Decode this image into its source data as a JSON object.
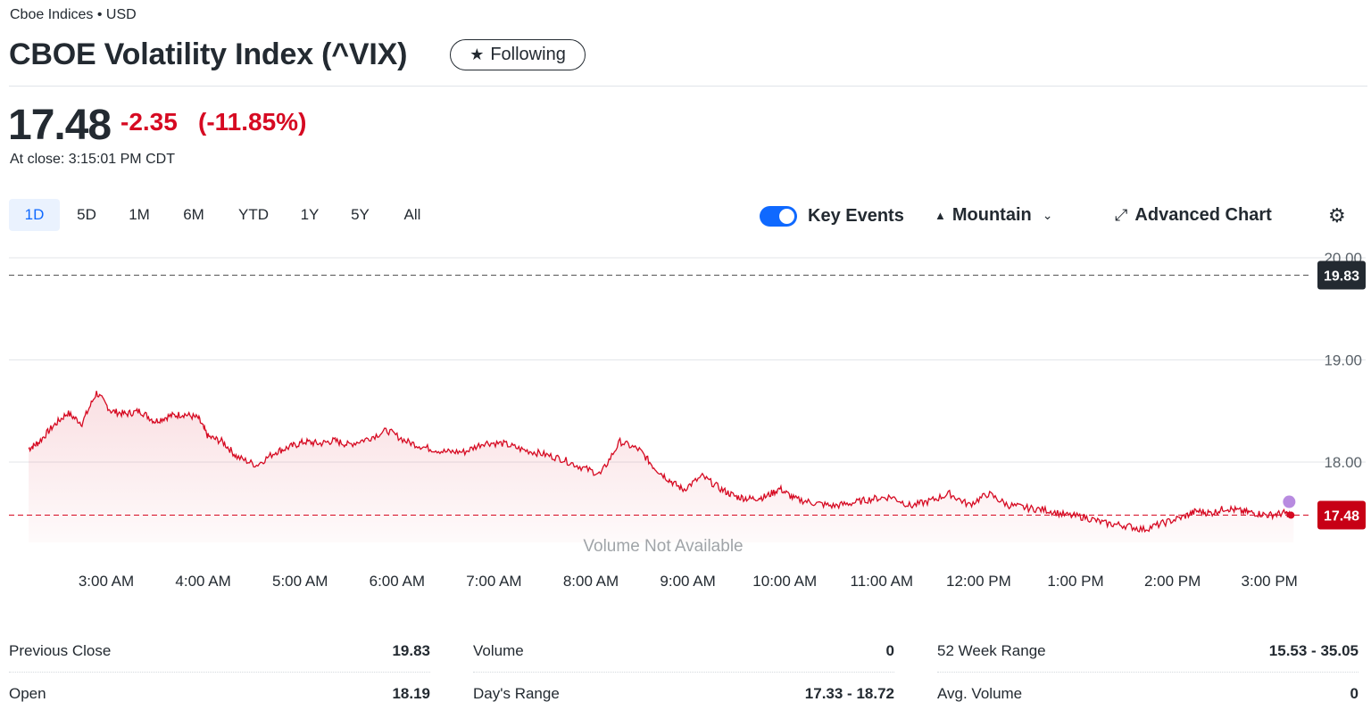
{
  "header": {
    "exchange": "Cboe Indices • USD",
    "title": "CBOE Volatility Index (^VIX)",
    "follow_label": "Following"
  },
  "quote": {
    "price": "17.48",
    "change": "-2.35",
    "change_pct": "(-11.85%)",
    "close_time": "At close: 3:15:01 PM CDT",
    "change_color": "#d60a22"
  },
  "chart_controls": {
    "ranges": [
      "1D",
      "5D",
      "1M",
      "6M",
      "YTD",
      "1Y",
      "5Y",
      "All"
    ],
    "active_range": "1D",
    "key_events_label": "Key Events",
    "key_events_on": true,
    "chart_type_label": "Mountain",
    "advanced_label": "Advanced Chart",
    "icons": {
      "chart_type": "mountain-icon",
      "advanced": "expand-icon",
      "settings": "gear-icon",
      "follow": "star-icon",
      "dropdown": "chevron-down-icon"
    }
  },
  "chart_data": {
    "type": "area",
    "x_tick_labels": [
      "3:00 AM",
      "4:00 AM",
      "5:00 AM",
      "6:00 AM",
      "7:00 AM",
      "8:00 AM",
      "9:00 AM",
      "10:00 AM",
      "11:00 AM",
      "12:00 PM",
      "1:00 PM",
      "2:00 PM",
      "3:00 PM"
    ],
    "y_tick_labels": [
      "20.00",
      "19.00",
      "18.00"
    ],
    "y_ticks": [
      20,
      19,
      18
    ],
    "ylim": [
      17.33,
      20.0
    ],
    "x_hours": [
      2.2,
      2.3,
      2.45,
      2.6,
      2.75,
      2.9,
      3.05,
      3.2,
      3.35,
      3.5,
      3.65,
      3.8,
      3.95,
      4.05,
      4.2,
      4.35,
      4.55,
      4.75,
      4.9,
      5.05,
      5.2,
      5.35,
      5.5,
      5.7,
      5.9,
      6.1,
      6.3,
      6.5,
      6.7,
      6.9,
      7.1,
      7.3,
      7.5,
      7.7,
      7.9,
      8.1,
      8.3,
      8.5,
      8.65,
      8.8,
      8.95,
      9.15,
      9.35,
      9.5,
      9.65,
      9.8,
      9.95,
      10.1,
      10.3,
      10.5,
      10.7,
      10.9,
      11.1,
      11.3,
      11.5,
      11.7,
      11.9,
      12.1,
      12.3,
      12.5,
      12.7,
      12.9,
      13.1,
      13.3,
      13.5,
      13.7,
      13.9,
      14.1,
      14.25,
      14.4,
      14.55,
      14.7,
      14.85,
      15.0,
      15.15,
      15.25
    ],
    "values": [
      18.13,
      18.19,
      18.35,
      18.48,
      18.38,
      18.68,
      18.5,
      18.47,
      18.5,
      18.4,
      18.45,
      18.47,
      18.43,
      18.25,
      18.2,
      18.05,
      17.97,
      18.1,
      18.15,
      18.2,
      18.18,
      18.21,
      18.17,
      18.23,
      18.31,
      18.2,
      18.14,
      18.1,
      18.1,
      18.19,
      18.18,
      18.12,
      18.08,
      18.03,
      17.95,
      17.88,
      18.2,
      18.12,
      17.95,
      17.83,
      17.73,
      17.86,
      17.73,
      17.66,
      17.64,
      17.66,
      17.74,
      17.64,
      17.6,
      17.57,
      17.6,
      17.64,
      17.66,
      17.57,
      17.62,
      17.69,
      17.58,
      17.69,
      17.58,
      17.55,
      17.53,
      17.48,
      17.46,
      17.4,
      17.38,
      17.34,
      17.4,
      17.46,
      17.52,
      17.5,
      17.55,
      17.52,
      17.5,
      17.48,
      17.5,
      17.48
    ],
    "previous_close": 19.83,
    "previous_close_label": "19.83",
    "last_value": 17.48,
    "last_label": "17.48",
    "volume_note": "Volume Not Available",
    "line_color": "#d60a22",
    "prev_close_badge_color": "#232a31",
    "last_badge_color": "#c70015",
    "event_dot_color": "#b88be0",
    "grid": true
  },
  "stats": {
    "col1": [
      {
        "label": "Previous Close",
        "value": "19.83"
      },
      {
        "label": "Open",
        "value": "18.19"
      }
    ],
    "col2": [
      {
        "label": "Volume",
        "value": "0"
      },
      {
        "label": "Day's Range",
        "value": "17.33 - 18.72"
      }
    ],
    "col3": [
      {
        "label": "52 Week Range",
        "value": "15.53 - 35.05"
      },
      {
        "label": "Avg. Volume",
        "value": "0"
      }
    ]
  }
}
